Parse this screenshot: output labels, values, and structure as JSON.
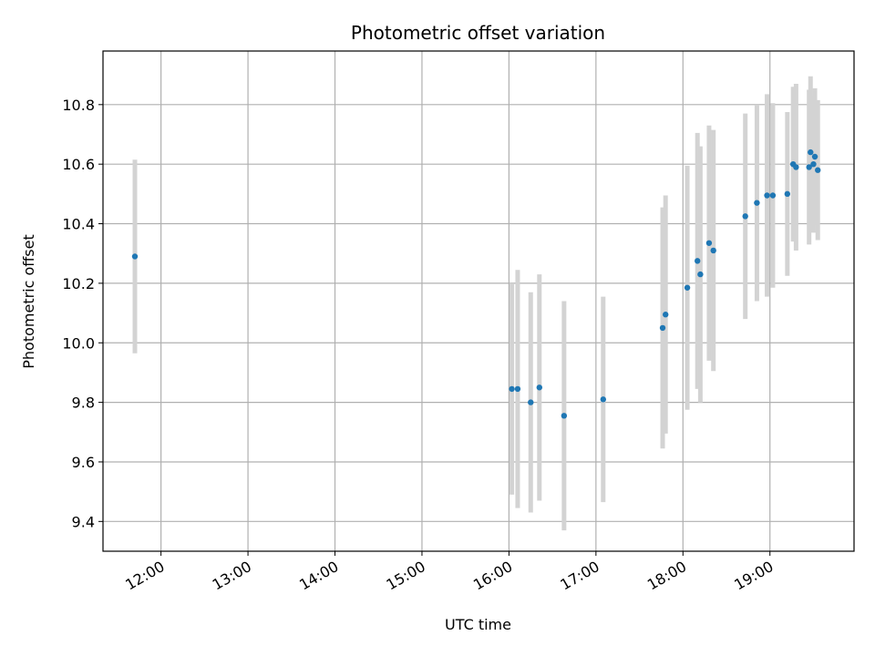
{
  "chart_data": {
    "type": "scatter",
    "title": "Photometric offset variation",
    "xlabel": "UTC time",
    "ylabel": "Photometric offset",
    "x_unit": "hours (UTC)",
    "xlim": [
      "11:20",
      "19:58"
    ],
    "ylim": [
      9.3,
      10.98
    ],
    "x_ticks": [
      "12:00",
      "13:00",
      "14:00",
      "15:00",
      "16:00",
      "17:00",
      "18:00",
      "19:00"
    ],
    "y_ticks": [
      "9.4",
      "9.6",
      "9.8",
      "10.0",
      "10.2",
      "10.4",
      "10.6",
      "10.8"
    ],
    "grid": true,
    "point_color": "#1f77b4",
    "errorbar_color": "#d3d3d3",
    "series": [
      {
        "points": [
          {
            "x": "11:42",
            "y": 10.29,
            "err": 0.325
          },
          {
            "x": "16:02",
            "y": 9.845,
            "err": 0.355
          },
          {
            "x": "16:06",
            "y": 9.845,
            "err": 0.4
          },
          {
            "x": "16:15",
            "y": 9.8,
            "err": 0.37
          },
          {
            "x": "16:21",
            "y": 9.85,
            "err": 0.38
          },
          {
            "x": "16:38",
            "y": 9.755,
            "err": 0.385
          },
          {
            "x": "17:05",
            "y": 9.81,
            "err": 0.345
          },
          {
            "x": "17:46",
            "y": 10.05,
            "err": 0.405
          },
          {
            "x": "17:48",
            "y": 10.095,
            "err": 0.4
          },
          {
            "x": "18:03",
            "y": 10.185,
            "err": 0.41
          },
          {
            "x": "18:10",
            "y": 10.275,
            "err": 0.43
          },
          {
            "x": "18:12",
            "y": 10.23,
            "err": 0.43
          },
          {
            "x": "18:18",
            "y": 10.335,
            "err": 0.395
          },
          {
            "x": "18:21",
            "y": 10.31,
            "err": 0.405
          },
          {
            "x": "18:43",
            "y": 10.425,
            "err": 0.345
          },
          {
            "x": "18:51",
            "y": 10.47,
            "err": 0.33
          },
          {
            "x": "18:58",
            "y": 10.495,
            "err": 0.34
          },
          {
            "x": "19:02",
            "y": 10.495,
            "err": 0.31
          },
          {
            "x": "19:12",
            "y": 10.5,
            "err": 0.275
          },
          {
            "x": "19:16",
            "y": 10.6,
            "err": 0.26
          },
          {
            "x": "19:18",
            "y": 10.59,
            "err": 0.28
          },
          {
            "x": "19:27",
            "y": 10.59,
            "err": 0.26
          },
          {
            "x": "19:28",
            "y": 10.64,
            "err": 0.255
          },
          {
            "x": "19:30",
            "y": 10.6,
            "err": 0.23
          },
          {
            "x": "19:31",
            "y": 10.625,
            "err": 0.23
          },
          {
            "x": "19:33",
            "y": 10.58,
            "err": 0.235
          }
        ]
      }
    ]
  }
}
